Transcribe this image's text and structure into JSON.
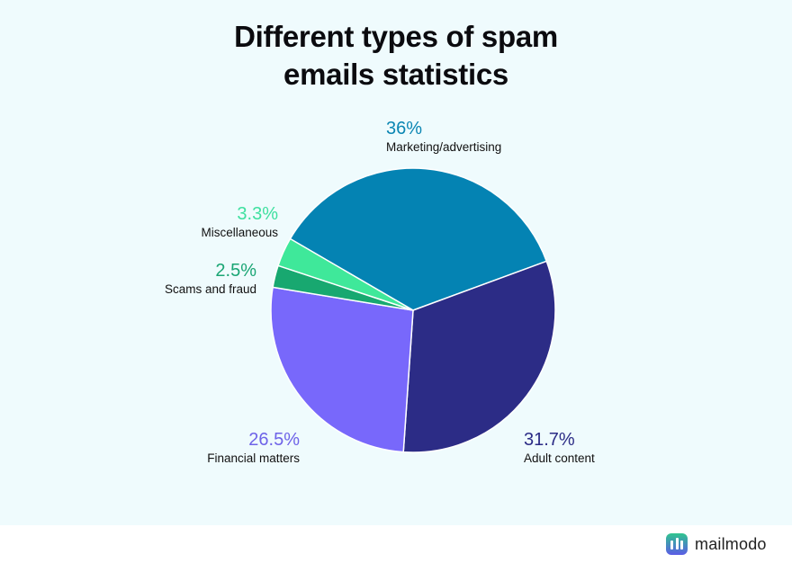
{
  "header": {
    "title_line1": "Different types of spam",
    "title_line2": "emails statistics"
  },
  "brand": {
    "name": "mailmodo",
    "icon": "mailmodo-logo-icon"
  },
  "colors": {
    "background": "#effbfd",
    "marketing": "#0483b3",
    "adult": "#2c2c86",
    "financial": "#7868fb",
    "scams": "#18a870",
    "misc": "#3fe89a"
  },
  "labels": {
    "marketing": {
      "pct": "36%",
      "name": "Marketing/advertising"
    },
    "adult": {
      "pct": "31.7%",
      "name": "Adult content"
    },
    "financial": {
      "pct": "26.5%",
      "name": "Financial matters"
    },
    "scams": {
      "pct": "2.5%",
      "name": "Scams and fraud"
    },
    "misc": {
      "pct": "3.3%",
      "name": "Miscellaneous"
    }
  },
  "chart_data": {
    "type": "pie",
    "title": "Different types of spam emails statistics",
    "categories": [
      "Marketing/advertising",
      "Adult content",
      "Financial matters",
      "Scams and fraud",
      "Miscellaneous"
    ],
    "values": [
      36,
      31.7,
      26.5,
      2.5,
      3.3
    ],
    "unit": "%",
    "colors": [
      "#0483b3",
      "#2c2c86",
      "#7868fb",
      "#18a870",
      "#3fe89a"
    ],
    "legend": "none (direct labels)",
    "xlabel": "",
    "ylabel": ""
  }
}
